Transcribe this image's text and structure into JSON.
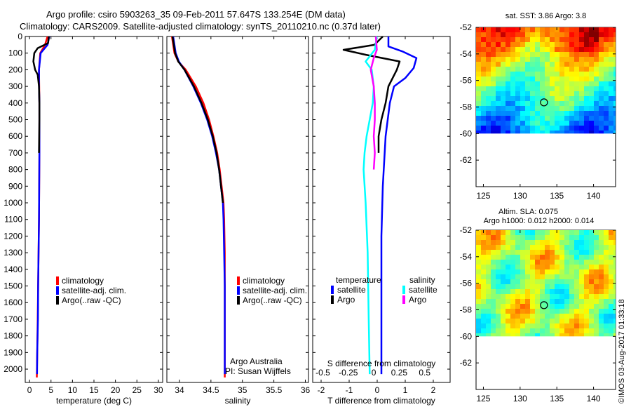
{
  "header": {
    "line1": "Argo profile: csiro 5903263_35 09-Feb-2011 57.647S 133.254E (DM data)",
    "line2": "Climatology: CARS2009. Satellite-adjusted climatology: synTS_20110210.nc (0.37d later)"
  },
  "credit": {
    "group": "Argo Australia",
    "pi": "PI: Susan Wijffels",
    "stamp": "©IMOS 03-Aug-2017 01:33:18"
  },
  "colors": {
    "climatology": "#ff0000",
    "satellite": "#0000ff",
    "argo": "#000000",
    "sat_sal": "#00ffff",
    "argo_sal": "#ff00ff"
  },
  "chart_data": [
    {
      "type": "line",
      "id": "temperature",
      "xlabel": "temperature (deg C)",
      "ylabel": "",
      "xlim": [
        -1,
        31
      ],
      "ylim": [
        2080,
        0
      ],
      "xticks": [
        0,
        5,
        10,
        15,
        20,
        25,
        30
      ],
      "yticks": [
        0,
        100,
        200,
        300,
        400,
        500,
        600,
        700,
        800,
        900,
        1000,
        1100,
        1200,
        1300,
        1400,
        1500,
        1600,
        1700,
        1800,
        1900,
        2000
      ],
      "legend": {
        "position": "center-left",
        "entries": [
          "climatology",
          "satellite-adj. clim.",
          "Argo(..raw -QC)"
        ]
      },
      "series": [
        {
          "name": "climatology",
          "color": "#ff0000",
          "x": [
            4.2,
            3.6,
            2.5,
            2.2,
            2.25,
            2.3,
            2.3,
            2.3,
            2.25,
            2.2,
            2.1,
            2.0,
            1.9,
            1.8,
            1.7
          ],
          "y": [
            0,
            50,
            100,
            200,
            300,
            400,
            500,
            700,
            900,
            1100,
            1300,
            1500,
            1700,
            1900,
            2050
          ]
        },
        {
          "name": "satellite-adj. clim.",
          "color": "#0000ff",
          "x": [
            4.6,
            4.2,
            2.6,
            2.2,
            2.2,
            2.3,
            2.3,
            2.3,
            2.25,
            2.2,
            2.1,
            2.0,
            1.95,
            1.8,
            1.75
          ],
          "y": [
            0,
            50,
            100,
            200,
            300,
            400,
            500,
            700,
            900,
            1100,
            1300,
            1500,
            1700,
            1900,
            2030
          ]
        },
        {
          "name": "Argo(..raw -QC)",
          "color": "#000000",
          "x": [
            4.5,
            4.3,
            1.9,
            1.1,
            0.9,
            1.3,
            1.9,
            2.2,
            2.3,
            2.3,
            2.25,
            2.2
          ],
          "y": [
            0,
            40,
            70,
            100,
            150,
            200,
            230,
            300,
            400,
            500,
            600,
            700
          ]
        }
      ]
    },
    {
      "type": "line",
      "id": "salinity",
      "xlabel": "salinity",
      "ylabel": "",
      "xlim": [
        33.8,
        36.05
      ],
      "ylim": [
        2080,
        0
      ],
      "xticks": [
        34,
        34.5,
        35,
        35.5,
        36
      ],
      "legend": {
        "position": "center-right",
        "entries": [
          "climatology",
          "satellite-adj. clim.",
          "Argo(..raw -QC)"
        ]
      },
      "series": [
        {
          "name": "climatology",
          "color": "#ff0000",
          "x": [
            33.88,
            33.92,
            33.98,
            34.1,
            34.26,
            34.38,
            34.47,
            34.54,
            34.6,
            34.64,
            34.67,
            34.7,
            34.71,
            34.72,
            34.72,
            34.72,
            34.72
          ],
          "y": [
            0,
            100,
            150,
            200,
            300,
            400,
            500,
            600,
            700,
            800,
            900,
            1000,
            1100,
            1300,
            1500,
            1800,
            2050
          ]
        },
        {
          "name": "satellite-adj. clim.",
          "color": "#0000ff",
          "x": [
            33.9,
            33.94,
            33.99,
            34.08,
            34.22,
            34.34,
            34.44,
            34.52,
            34.58,
            34.63,
            34.66,
            34.69,
            34.7,
            34.71,
            34.72,
            34.72,
            34.72
          ],
          "y": [
            0,
            100,
            150,
            200,
            300,
            400,
            500,
            600,
            700,
            800,
            900,
            1000,
            1100,
            1300,
            1500,
            1800,
            2030
          ]
        },
        {
          "name": "Argo(..raw -QC)",
          "color": "#000000",
          "x": [
            33.89,
            33.93,
            33.98,
            34.08,
            34.23,
            34.35,
            34.45,
            34.53,
            34.59,
            34.63,
            34.66,
            34.69
          ],
          "y": [
            0,
            100,
            150,
            200,
            300,
            400,
            500,
            600,
            700,
            800,
            900,
            1000
          ]
        }
      ]
    },
    {
      "type": "line",
      "id": "difference",
      "xlabel": "T difference from climatology",
      "x2label": "S difference from climatology",
      "ylabel": "",
      "xlim": [
        -2.3,
        2.6
      ],
      "x2lim": [
        -0.6,
        0.75
      ],
      "ylim": [
        2080,
        0
      ],
      "xticks": [
        -2,
        -1,
        0,
        1,
        2
      ],
      "x2ticks": [
        -0.5,
        -0.25,
        0,
        0.25,
        0.5
      ],
      "x2ticklabels": [
        "-0.5",
        "-0.25",
        "0",
        "0.25",
        "0.5"
      ],
      "legend": {
        "position": "bottom",
        "groups": [
          "temperature",
          "salinity"
        ],
        "entries": [
          "satellite",
          "Argo",
          "satellite",
          "Argo"
        ]
      },
      "series": [
        {
          "name": "satellite",
          "group": "temperature",
          "color": "#0000ff",
          "x": [
            0.4,
            0.4,
            0.9,
            1.4,
            1.3,
            1.0,
            0.6,
            0.45,
            0.3,
            0.2,
            0.15,
            0.15,
            0.15,
            0.15
          ],
          "y": [
            0,
            60,
            90,
            130,
            190,
            250,
            300,
            400,
            600,
            900,
            1200,
            1500,
            1800,
            2030
          ]
        },
        {
          "name": "Argo",
          "group": "temperature",
          "color": "#000000",
          "x": [
            0.2,
            -0.1,
            -1.2,
            -0.4,
            0.8,
            0.7,
            0.4,
            0.3,
            0.15,
            0.05,
            0.05
          ],
          "y": [
            0,
            50,
            80,
            110,
            150,
            200,
            300,
            400,
            500,
            600,
            700
          ]
        },
        {
          "name": "satellite",
          "group": "salinity",
          "color": "#00ffff",
          "x": [
            0.03,
            0.01,
            -0.08,
            -0.02,
            0.0,
            -0.01,
            -0.04,
            -0.07,
            -0.09,
            -0.1,
            -0.08,
            -0.06,
            -0.05,
            -0.04
          ],
          "y": [
            0,
            80,
            150,
            200,
            300,
            400,
            500,
            600,
            700,
            800,
            1000,
            1300,
            1700,
            2030
          ]
        },
        {
          "name": "Argo",
          "group": "salinity",
          "color": "#ff00ff",
          "x": [
            0.02,
            0.03,
            0.0,
            -0.03,
            0.0,
            0.01,
            0.01,
            0.0,
            0.01,
            0.0
          ],
          "y": [
            0,
            80,
            130,
            200,
            300,
            400,
            500,
            600,
            700,
            800
          ]
        }
      ]
    },
    {
      "type": "heatmap",
      "id": "sst",
      "title": "sat. SST: 3.86  Argo: 3.8",
      "xlim": [
        124,
        143
      ],
      "ylim": [
        -64,
        -52
      ],
      "xticks": [
        125,
        130,
        135,
        140
      ],
      "yticks": [
        -52,
        -54,
        -56,
        -58,
        -60,
        -62
      ],
      "data_extent_y": [
        -60,
        -52
      ],
      "marker": {
        "x": 133.25,
        "y": -57.65
      }
    },
    {
      "type": "heatmap",
      "id": "sla",
      "title": "Altim. SLA: 0.075",
      "subtitle": "Argo h1000: 0.012  h2000: 0.014",
      "xlim": [
        124,
        143
      ],
      "ylim": [
        -64,
        -52
      ],
      "xticks": [
        125,
        130,
        135,
        140
      ],
      "yticks": [
        -52,
        -54,
        -56,
        -58,
        -60,
        -62
      ],
      "data_extent_y": [
        -60,
        -52
      ],
      "marker": {
        "x": 133.25,
        "y": -57.65
      }
    }
  ]
}
